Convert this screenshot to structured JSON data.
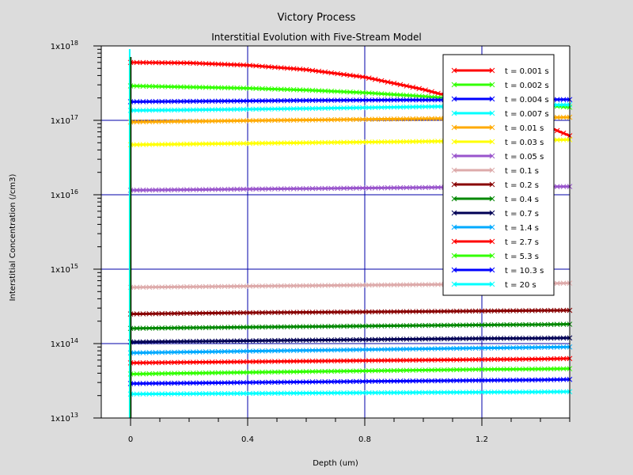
{
  "window": {
    "background": "#dcdcdc",
    "plot_background": "#ffffff",
    "grid_color": "#0000aa"
  },
  "chart_data": {
    "type": "line",
    "title": "Victory Process",
    "subtitle": "Interstitial Evolution with Five-Stream Model",
    "xlabel": "Depth (um)",
    "ylabel": "Interstitial Concentration (/cm3)",
    "xlim": [
      -0.1,
      1.5
    ],
    "ylim": [
      10000000000000.0,
      1e+18
    ],
    "yscale": "log",
    "grid": true,
    "legend_position": "top-right",
    "x_ticks": [
      {
        "value": 0,
        "label": "0"
      },
      {
        "value": 0.4,
        "label": "0.4"
      },
      {
        "value": 0.8,
        "label": "0.8"
      },
      {
        "value": 1.2,
        "label": "1.2"
      }
    ],
    "y_ticks": [
      {
        "value": 10000000000000.0,
        "base": "1x10",
        "exp": "13"
      },
      {
        "value": 100000000000000.0,
        "base": "1x10",
        "exp": "14"
      },
      {
        "value": 1000000000000000.0,
        "base": "1x10",
        "exp": "15"
      },
      {
        "value": 1e+16,
        "base": "1x10",
        "exp": "16"
      },
      {
        "value": 1e+17,
        "base": "1x10",
        "exp": "17"
      },
      {
        "value": 1e+18,
        "base": "1x10",
        "exp": "18"
      }
    ],
    "x": [
      0,
      0.2,
      0.4,
      0.6,
      0.8,
      1.0,
      1.2,
      1.4,
      1.5
    ],
    "series": [
      {
        "name": "t = 0.001 s",
        "color": "#ff0000",
        "values": [
          6e+17,
          5.9e+17,
          5.5e+17,
          4.8e+17,
          3.8e+17,
          2.6e+17,
          1.6e+17,
          9e+16,
          6.2e+16
        ]
      },
      {
        "name": "t = 0.002 s",
        "color": "#33ff00",
        "values": [
          2.9e+17,
          2.8e+17,
          2.7e+17,
          2.55e+17,
          2.35e+17,
          2.1e+17,
          1.85e+17,
          1.6e+17,
          1.5e+17
        ]
      },
      {
        "name": "t = 0.004 s",
        "color": "#0000ff",
        "values": [
          1.78e+17,
          1.8e+17,
          1.82e+17,
          1.85e+17,
          1.87e+17,
          1.88e+17,
          1.89e+17,
          1.9e+17,
          1.9e+17
        ]
      },
      {
        "name": "t = 0.007 s",
        "color": "#00ffff",
        "values": [
          1.36e+17,
          1.38e+17,
          1.41e+17,
          1.44e+17,
          1.48e+17,
          1.52e+17,
          1.56e+17,
          1.6e+17,
          1.62e+17
        ]
      },
      {
        "name": "t = 0.01 s",
        "color": "#ffaa00",
        "values": [
          9.5e+16,
          9.7e+16,
          9.9e+16,
          1.01e+17,
          1.03e+17,
          1.05e+17,
          1.07e+17,
          1.09e+17,
          1.1e+17
        ]
      },
      {
        "name": "t = 0.03 s",
        "color": "#ffff00",
        "values": [
          4.7e+16,
          4.8e+16,
          4.9e+16,
          5e+16,
          5.1e+16,
          5.2e+16,
          5.3e+16,
          5.4e+16,
          5.5e+16
        ]
      },
      {
        "name": "t = 0.05 s",
        "color": "#9955cc",
        "values": [
          1.15e+16,
          1.17e+16,
          1.19e+16,
          1.21e+16,
          1.23e+16,
          1.25e+16,
          1.27e+16,
          1.28e+16,
          1.29e+16
        ]
      },
      {
        "name": "t = 0.1 s",
        "color": "#ddaaaa",
        "values": [
          570000000000000.0,
          580000000000000.0,
          590000000000000.0,
          600000000000000.0,
          610000000000000.0,
          620000000000000.0,
          630000000000000.0,
          640000000000000.0,
          650000000000000.0
        ]
      },
      {
        "name": "t = 0.2 s",
        "color": "#880000",
        "values": [
          250000000000000.0,
          255000000000000.0,
          260000000000000.0,
          263000000000000.0,
          266000000000000.0,
          270000000000000.0,
          274000000000000.0,
          278000000000000.0,
          280000000000000.0
        ]
      },
      {
        "name": "t = 0.4 s",
        "color": "#008800",
        "values": [
          160000000000000.0,
          163000000000000.0,
          166000000000000.0,
          169000000000000.0,
          172000000000000.0,
          175000000000000.0,
          178000000000000.0,
          180000000000000.0,
          182000000000000.0
        ]
      },
      {
        "name": "t = 0.7 s",
        "color": "#000055",
        "values": [
          105000000000000.0,
          107000000000000.0,
          109000000000000.0,
          111000000000000.0,
          113000000000000.0,
          115000000000000.0,
          117000000000000.0,
          118000000000000.0,
          119000000000000.0
        ]
      },
      {
        "name": "t = 1.4 s",
        "color": "#00aaff",
        "values": [
          75000000000000.0,
          77000000000000.0,
          79000000000000.0,
          81000000000000.0,
          83000000000000.0,
          85000000000000.0,
          87000000000000.0,
          89000000000000.0,
          90000000000000.0
        ]
      },
      {
        "name": "t = 2.7 s",
        "color": "#ff0000",
        "values": [
          55000000000000.0,
          56000000000000.0,
          57000000000000.0,
          58000000000000.0,
          59000000000000.0,
          60000000000000.0,
          61000000000000.0,
          62000000000000.0,
          63000000000000.0
        ]
      },
      {
        "name": "t = 5.3 s",
        "color": "#33ff00",
        "values": [
          39000000000000.0,
          40000000000000.0,
          41000000000000.0,
          42000000000000.0,
          43000000000000.0,
          44000000000000.0,
          45000000000000.0,
          45500000000000.0,
          46000000000000.0
        ]
      },
      {
        "name": "t = 10.3 s",
        "color": "#0000ff",
        "values": [
          29000000000000.0,
          29500000000000.0,
          30000000000000.0,
          30500000000000.0,
          31000000000000.0,
          31500000000000.0,
          32000000000000.0,
          32500000000000.0,
          33000000000000.0
        ]
      },
      {
        "name": "t = 20 s",
        "color": "#00ffff",
        "values": [
          21000000000000.0,
          21200000000000.0,
          21400000000000.0,
          21600000000000.0,
          21800000000000.0,
          22000000000000.0,
          22200000000000.0,
          22400000000000.0,
          22600000000000.0
        ]
      }
    ]
  }
}
